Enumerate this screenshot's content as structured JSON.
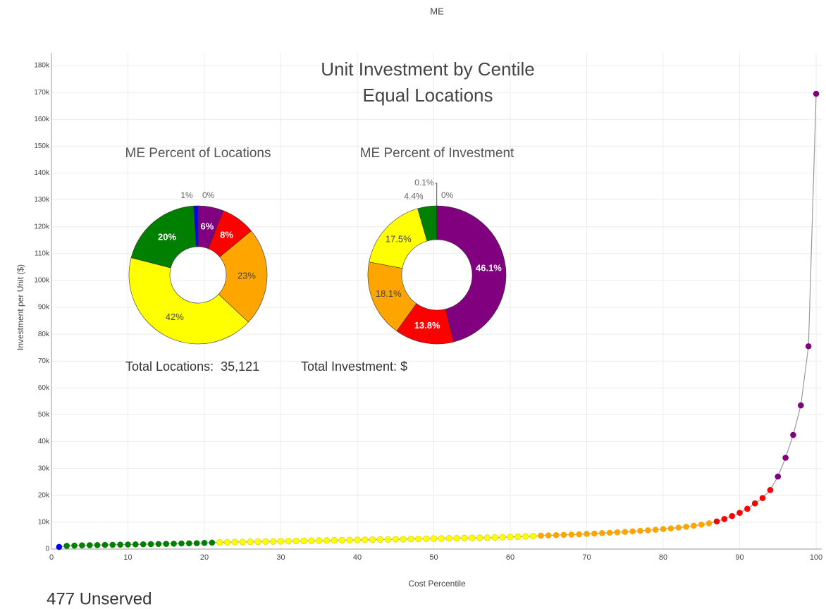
{
  "header": "ME",
  "footer": "477 Unserved",
  "chart_data": [
    {
      "type": "scatter",
      "title": "Unit Investment by Centile",
      "subtitle": "Equal Locations",
      "x_label": "Cost Percentile",
      "y_label": "Investment per Unit ($)",
      "xlim": [
        0,
        100
      ],
      "xticks": [
        0,
        10,
        20,
        30,
        40,
        50,
        60,
        70,
        80,
        90,
        100
      ],
      "ylim": [
        0,
        180000
      ],
      "yticks": [
        0,
        {
          "value": 10000,
          "label": "10k"
        },
        {
          "value": 20000,
          "label": "20k"
        },
        {
          "value": 30000,
          "label": "30k"
        },
        {
          "value": 40000,
          "label": "40k"
        },
        {
          "value": 50000,
          "label": "50k"
        },
        {
          "value": 60000,
          "label": "60k"
        },
        {
          "value": 70000,
          "label": "70k"
        },
        {
          "value": 80000,
          "label": "80k"
        },
        {
          "value": 90000,
          "label": "90k"
        },
        {
          "value": 100000,
          "label": "100k"
        },
        {
          "value": 110000,
          "label": "110k"
        },
        {
          "value": 120000,
          "label": "120k"
        },
        {
          "value": 130000,
          "label": "130k"
        },
        {
          "value": 140000,
          "label": "140k"
        },
        {
          "value": 150000,
          "label": "150k"
        },
        {
          "value": 160000,
          "label": "160k"
        },
        {
          "value": 170000,
          "label": "170k"
        },
        {
          "value": 180000,
          "label": "180k"
        }
      ],
      "grid": true,
      "line_color": "#999999",
      "series": [
        {
          "color": "#0000ff",
          "x": [
            1
          ],
          "values": [
            800
          ]
        },
        {
          "color": "#007f00",
          "x": [
            2,
            3,
            4,
            5,
            6,
            7,
            8,
            9,
            10,
            11,
            12,
            13,
            14,
            15,
            16,
            17,
            18,
            19,
            20,
            21
          ],
          "values": [
            1200,
            1300,
            1400,
            1450,
            1500,
            1550,
            1600,
            1650,
            1700,
            1750,
            1800,
            1850,
            1900,
            1950,
            2000,
            2100,
            2150,
            2200,
            2300,
            2400
          ]
        },
        {
          "color": "#ffff00",
          "x": [
            22,
            23,
            24,
            25,
            26,
            27,
            28,
            29,
            30,
            31,
            32,
            33,
            34,
            35,
            36,
            37,
            38,
            39,
            40,
            41,
            42,
            43,
            44,
            45,
            46,
            47,
            48,
            49,
            50,
            51,
            52,
            53,
            54,
            55,
            56,
            57,
            58,
            59,
            60,
            61,
            62,
            63
          ],
          "values": [
            2500,
            2550,
            2600,
            2650,
            2700,
            2750,
            2800,
            2850,
            2900,
            2950,
            3000,
            3050,
            3100,
            3150,
            3200,
            3250,
            3300,
            3350,
            3400,
            3450,
            3500,
            3550,
            3600,
            3650,
            3700,
            3750,
            3800,
            3850,
            3900,
            3950,
            4000,
            4050,
            4100,
            4150,
            4200,
            4250,
            4300,
            4400,
            4500,
            4600,
            4700,
            4800
          ]
        },
        {
          "color": "#ffa500",
          "x": [
            64,
            65,
            66,
            67,
            68,
            69,
            70,
            71,
            72,
            73,
            74,
            75,
            76,
            77,
            78,
            79,
            80,
            81,
            82,
            83,
            84,
            85,
            86
          ],
          "values": [
            5000,
            5100,
            5200,
            5300,
            5400,
            5500,
            5650,
            5800,
            5950,
            6100,
            6250,
            6400,
            6600,
            6800,
            7000,
            7200,
            7450,
            7700,
            8000,
            8300,
            8700,
            9100,
            9600
          ]
        },
        {
          "color": "#ff0000",
          "x": [
            87,
            88,
            89,
            90,
            91,
            92,
            93,
            94
          ],
          "values": [
            10300,
            11200,
            12300,
            13500,
            15000,
            17000,
            19000,
            22000
          ]
        },
        {
          "color": "#800080",
          "x": [
            95,
            96,
            97,
            98,
            99,
            100
          ],
          "values": [
            27000,
            34000,
            42500,
            53500,
            75500,
            169500
          ]
        }
      ]
    },
    {
      "type": "pie",
      "title": "ME Percent of Locations",
      "values": [
        6,
        8,
        23,
        42,
        20,
        1,
        0
      ],
      "value_labels": [
        "6%",
        "8%",
        "23%",
        "42%",
        "20%",
        "1%",
        "0%"
      ],
      "colors": [
        "#800080",
        "#ff0000",
        "#ffa500",
        "#ffff00",
        "#007f00",
        "#0000ff",
        "#808080"
      ],
      "total_label": "Total Locations:  35,121"
    },
    {
      "type": "pie",
      "title": "ME Percent of Investment",
      "values": [
        46.1,
        13.8,
        18.1,
        17.5,
        4.4,
        0.1,
        0
      ],
      "value_labels": [
        "46.1%",
        "13.8%",
        "18.1%",
        "17.5%",
        "4.4%",
        "0.1%",
        "0%"
      ],
      "colors": [
        "#800080",
        "#ff0000",
        "#ffa500",
        "#ffff00",
        "#007f00",
        "#0000ff",
        "#808080"
      ],
      "total_label": "Total Investment: $"
    }
  ]
}
